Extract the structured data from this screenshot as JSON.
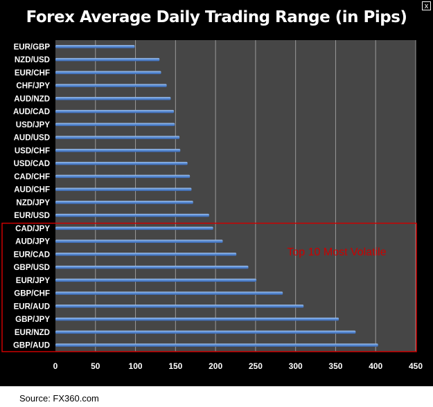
{
  "chart_data": {
    "type": "bar",
    "orientation": "horizontal",
    "title": "Forex Average Daily Trading Range (in Pips)",
    "categories": [
      "EUR/GBP",
      "NZD/USD",
      "EUR/CHF",
      "CHF/JPY",
      "AUD/NZD",
      "AUD/CAD",
      "USD/JPY",
      "AUD/USD",
      "USD/CHF",
      "USD/CAD",
      "CAD/CHF",
      "AUD/CHF",
      "NZD/JPY",
      "EUR/USD",
      "CAD/JPY",
      "AUD/JPY",
      "EUR/CAD",
      "GBP/USD",
      "EUR/JPY",
      "GBP/CHF",
      "EUR/AUD",
      "GBP/JPY",
      "EUR/NZD",
      "GBP/AUD"
    ],
    "values": [
      99,
      130,
      132,
      139,
      144,
      148,
      149,
      155,
      156,
      165,
      168,
      170,
      172,
      192,
      197,
      209,
      226,
      241,
      251,
      284,
      310,
      354,
      375,
      403
    ],
    "xlim": [
      0,
      450
    ],
    "xticks": [
      0,
      50,
      100,
      150,
      200,
      250,
      300,
      350,
      400,
      450
    ],
    "grid": true,
    "annotation": {
      "text": "Top 10 Most Volatile",
      "highlight_categories": [
        "CAD/JPY",
        "AUD/JPY",
        "EUR/CAD",
        "GBP/USD",
        "EUR/JPY",
        "GBP/CHF",
        "EUR/AUD",
        "GBP/JPY",
        "EUR/NZD",
        "GBP/AUD"
      ],
      "color": "#cc0000"
    },
    "colors": {
      "bar": "#5b8fd6",
      "bar_light": "#a9c8f2",
      "bar_dark": "#3a66b0",
      "plot_bg": "#464646",
      "grid": "#9a9a9a",
      "text": "#ffffff"
    }
  },
  "footer": {
    "source": "Source: FX360.com"
  },
  "window": {
    "close_glyph": "x"
  }
}
